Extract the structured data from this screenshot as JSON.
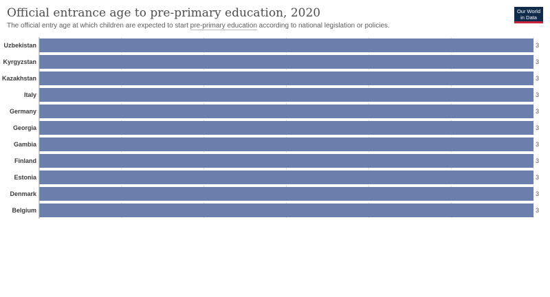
{
  "header": {
    "title": "Official entrance age to pre-primary education, 2020",
    "subtitle_before": "The official entry age at which children are expected to start ",
    "subtitle_link": "pre-primary education",
    "subtitle_after": " according to national legislation or policies."
  },
  "logo": {
    "line1": "Our World",
    "line2": "in Data"
  },
  "colors": {
    "bar": "#6a7fab",
    "grid": "#dddddd",
    "axis": "#9a9a9a"
  },
  "chart_data": {
    "type": "bar",
    "orientation": "horizontal",
    "categories": [
      "Uzbekistan",
      "Kyrgyzstan",
      "Kazakhstan",
      "Italy",
      "Germany",
      "Georgia",
      "Gambia",
      "Finland",
      "Estonia",
      "Denmark",
      "Belgium"
    ],
    "values": [
      3,
      3,
      3,
      3,
      3,
      3,
      3,
      3,
      3,
      3,
      3
    ],
    "xlim": [
      0,
      3
    ],
    "grid": true,
    "value_labels": true
  }
}
